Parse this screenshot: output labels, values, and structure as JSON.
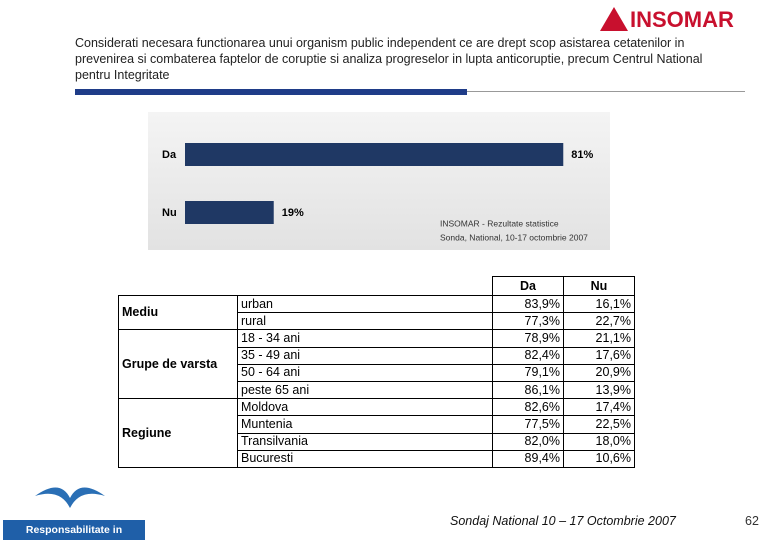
{
  "header": {
    "title": "Considerati necesara functionarea unui organism public independent ce are drept scop asistarea cetatenilor in prevenirea si combaterea faptelor de coruptie si analiza progreselor in lupta anticoruptie, precum Centrul National pentru Integritate",
    "logo": "INSOMAR"
  },
  "chart_data": {
    "type": "bar",
    "orientation": "horizontal",
    "categories": [
      "Da",
      "Nu"
    ],
    "values": [
      81,
      19
    ],
    "value_labels": [
      "81%",
      "19%"
    ],
    "color": "#1f3864",
    "note": [
      "INSOMAR - Rezultate statistice",
      "Sonda, National, 10-17 octombrie 2007"
    ]
  },
  "table": {
    "columns": [
      "Da",
      "Nu"
    ],
    "groups": [
      {
        "label": "Mediu",
        "rows": [
          [
            "urban",
            "83,9%",
            "16,1%"
          ],
          [
            "rural",
            "77,3%",
            "22,7%"
          ]
        ]
      },
      {
        "label": "Grupe de varsta",
        "rows": [
          [
            "18 - 34 ani",
            "78,9%",
            "21,1%"
          ],
          [
            "35 - 49 ani",
            "82,4%",
            "17,6%"
          ],
          [
            "50 - 64 ani",
            "79,1%",
            "20,9%"
          ],
          [
            "peste 65 ani",
            "86,1%",
            "13,9%"
          ]
        ]
      },
      {
        "label": "Regiune",
        "rows": [
          [
            "Moldova",
            "82,6%",
            "17,4%"
          ],
          [
            "Muntenia",
            "77,5%",
            "22,5%"
          ],
          [
            "Transilvania",
            "82,0%",
            "18,0%"
          ],
          [
            "Bucuresti",
            "89,4%",
            "10,6%"
          ]
        ]
      }
    ]
  },
  "footer": {
    "org": "Responsabilitate in Democratie",
    "caption": "Sondaj National 10 – 17 Octombrie 2007",
    "page": "62"
  }
}
